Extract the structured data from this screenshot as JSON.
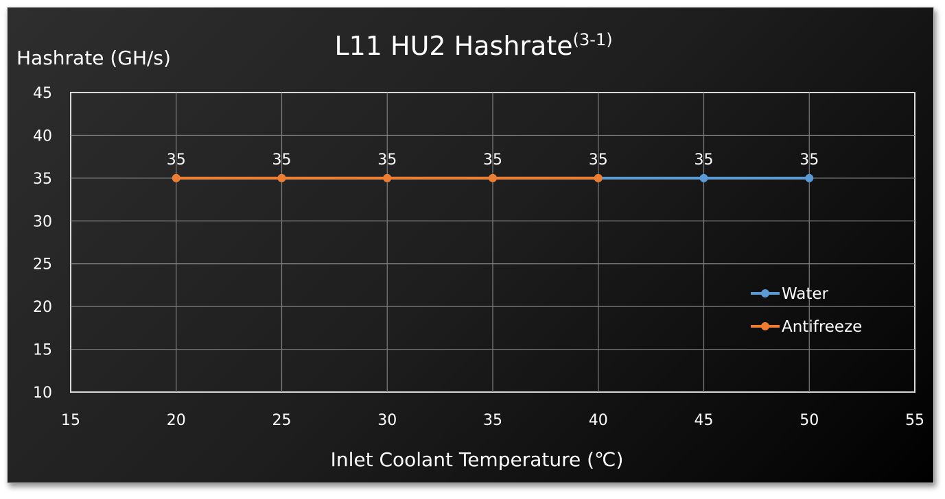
{
  "chart_data": {
    "type": "line",
    "title": "L11 HU2 Hashrate",
    "title_superscript": "(3-1)",
    "xlabel": "Inlet Coolant Temperature (℃)",
    "ylabel": "Hashrate (GH/s)",
    "xlim": [
      15,
      55
    ],
    "ylim": [
      10,
      45
    ],
    "xticks": [
      15,
      20,
      25,
      30,
      35,
      40,
      45,
      50,
      55
    ],
    "yticks": [
      10,
      15,
      20,
      25,
      30,
      35,
      40,
      45
    ],
    "grid": true,
    "legend_position": "right",
    "data_labels": true,
    "series": [
      {
        "name": "Water",
        "color": "#5b9bd5",
        "x": [
          20,
          25,
          30,
          35,
          40,
          45,
          50
        ],
        "y": [
          35,
          35,
          35,
          35,
          35,
          35,
          35
        ]
      },
      {
        "name": "Antifreeze",
        "color": "#ed7d31",
        "x": [
          20,
          25,
          30,
          35,
          40
        ],
        "y": [
          35,
          35,
          35,
          35,
          35
        ]
      }
    ]
  }
}
